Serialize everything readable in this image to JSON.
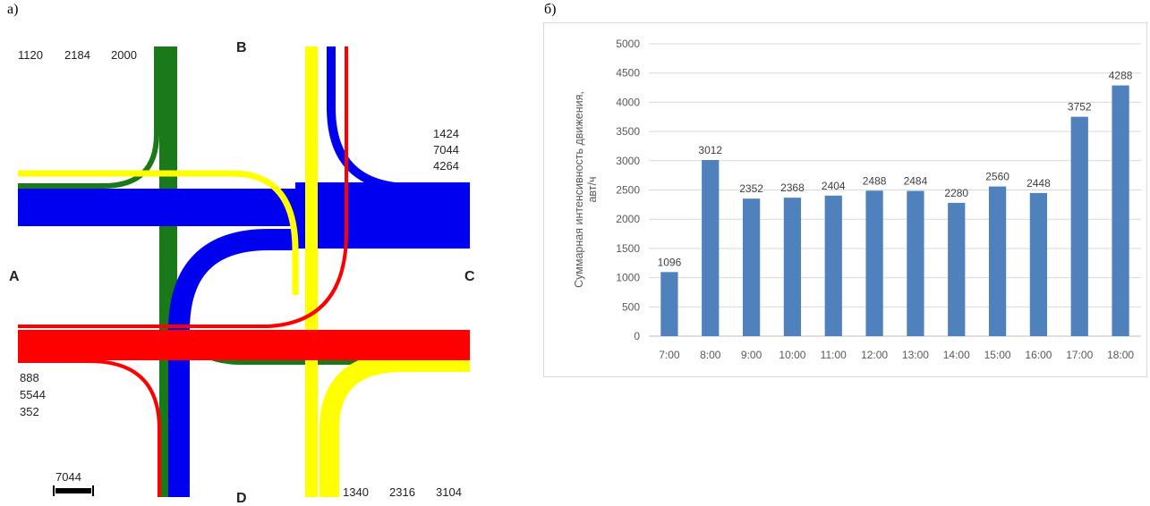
{
  "panels": {
    "left_label": "а)",
    "right_label": "б)"
  },
  "flow_diagram": {
    "nodes": {
      "north": "B",
      "south": "D",
      "west": "A",
      "east": "C"
    },
    "top_left_values": [
      "1120",
      "2184",
      "2000"
    ],
    "right_values": [
      "1424",
      "7044",
      "4264"
    ],
    "left_bottom_values": [
      "888",
      "5544",
      "352"
    ],
    "bottom_right_values": [
      "1340",
      "2316",
      "3104"
    ],
    "scale_value": "7044",
    "colors": {
      "green": "#1a7a1a",
      "blue": "#0000f0",
      "yellow": "#ffff00",
      "red": "#ff0000"
    }
  },
  "chart_data": {
    "type": "bar",
    "categories": [
      "7:00",
      "8:00",
      "9:00",
      "10:00",
      "11:00",
      "12:00",
      "13:00",
      "14:00",
      "15:00",
      "16:00",
      "17:00",
      "18:00"
    ],
    "values": [
      1096,
      3012,
      2352,
      2368,
      2404,
      2488,
      2484,
      2280,
      2560,
      2448,
      3752,
      4288
    ],
    "data_labels": [
      "1096",
      "3012",
      "2352",
      "2368",
      "2404",
      "2488",
      "2484",
      "2280",
      "2560",
      "2448",
      "3752",
      "4288"
    ],
    "y_ticks": [
      "0",
      "500",
      "1000",
      "1500",
      "2000",
      "2500",
      "3000",
      "3500",
      "4000",
      "4500",
      "5000"
    ],
    "ylim": [
      0,
      5000
    ],
    "ylabel_line1": "Суммарная интенсивность движения,",
    "ylabel_line2": "авт/ч",
    "bar_color": "#4f81bd",
    "grid": true
  }
}
